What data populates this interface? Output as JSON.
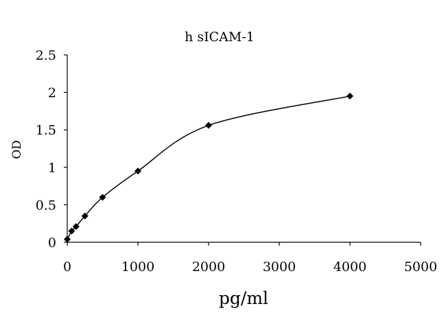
{
  "chart_data": {
    "type": "line",
    "title": "h sICAM-1",
    "xlabel": "pg/ml",
    "ylabel": "OD",
    "xlim": [
      0,
      5000
    ],
    "ylim": [
      0,
      2.5
    ],
    "xticks": [
      0,
      1000,
      2000,
      3000,
      4000,
      5000
    ],
    "yticks": [
      0,
      0.5,
      1,
      1.5,
      2,
      2.5
    ],
    "xtick_labels": [
      "0",
      "1000",
      "2000",
      "3000",
      "4000",
      "5000"
    ],
    "ytick_labels": [
      "0",
      "0.5",
      "1",
      "1.5",
      "2",
      "2.5"
    ],
    "grid": false,
    "smooth": true,
    "marker": "diamond",
    "series": [
      {
        "x": [
          0,
          62.5,
          125,
          250,
          500,
          1000,
          2000,
          4000
        ],
        "y": [
          0.04,
          0.15,
          0.21,
          0.35,
          0.6,
          0.95,
          1.56,
          1.95
        ]
      }
    ]
  }
}
